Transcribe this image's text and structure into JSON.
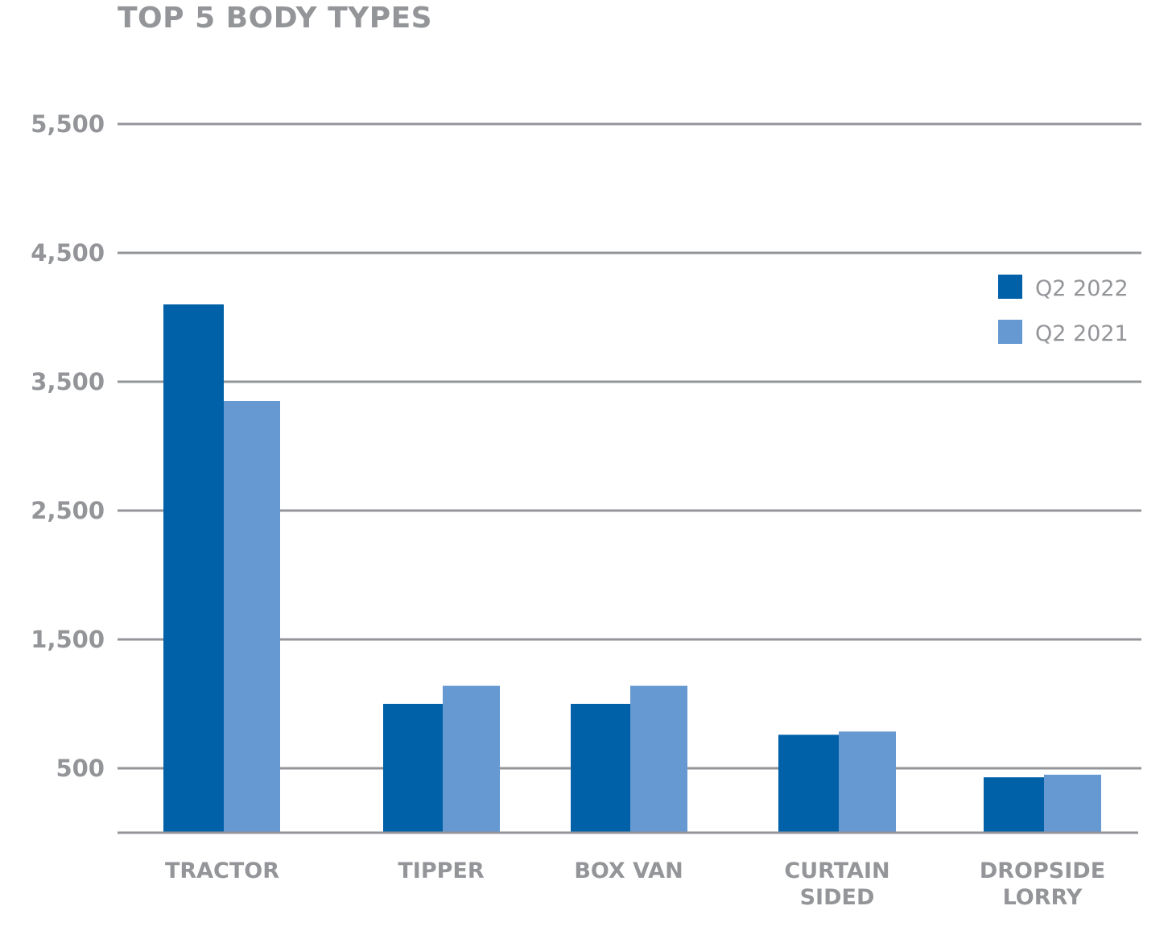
{
  "chart_data": {
    "type": "bar",
    "title": "TOP 5 BODY TYPES",
    "xlabel": "",
    "ylabel": "",
    "categories": [
      "TRACTOR",
      "TIPPER",
      "BOX VAN",
      "CURTAIN SIDED",
      "DROPSIDE LORRY"
    ],
    "category_lines": [
      [
        "TRACTOR"
      ],
      [
        "TIPPER"
      ],
      [
        "BOX VAN"
      ],
      [
        "CURTAIN",
        "SIDED"
      ],
      [
        "DROPSIDE",
        "LORRY"
      ]
    ],
    "series": [
      {
        "name": "Q2 2022",
        "color": "#0061a8",
        "values": [
          4100,
          1000,
          1000,
          760,
          430
        ]
      },
      {
        "name": "Q2 2021",
        "color": "#6699d2",
        "values": [
          3350,
          1140,
          1140,
          785,
          450
        ]
      }
    ],
    "yticks": [
      500,
      1500,
      2500,
      3500,
      4500,
      5500
    ],
    "ytick_labels": [
      "500",
      "1,500",
      "2,500",
      "3,500",
      "4,500",
      "5,500"
    ],
    "ylim": [
      0,
      5500
    ],
    "grid": true,
    "legend_position": "top-right"
  }
}
